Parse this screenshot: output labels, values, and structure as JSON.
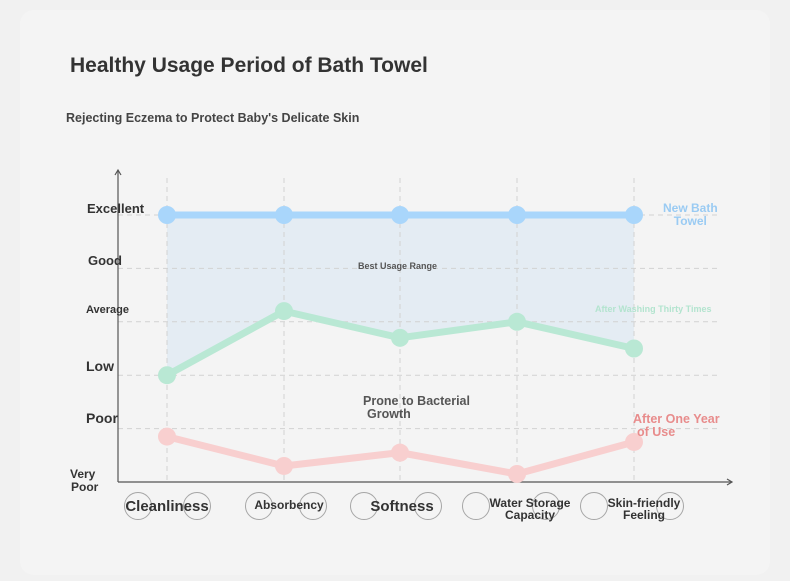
{
  "title": "Healthy Usage Period of Bath Towel",
  "subtitle": "Rejecting Eczema to Protect Baby's Delicate Skin",
  "colors": {
    "new_towel": "#a9d6fb",
    "after_washing": "#b9e8d4",
    "after_year": "#f8cfcf",
    "grid": "#d2d2d2",
    "axis": "#555555"
  },
  "chart_data": {
    "type": "line",
    "categories": [
      "Cleanliness",
      "Absorbency",
      "Softness",
      "Water Storage Capacity",
      "Skin-friendly Feeling"
    ],
    "category_lines": [
      [
        "Cleanliness"
      ],
      [
        "Absorbency"
      ],
      [
        "Softness"
      ],
      [
        "Water Storage",
        "Capacity"
      ],
      [
        "Skin-friendly",
        "Feeling"
      ]
    ],
    "y_levels": [
      "Very Poor",
      "Poor",
      "Low",
      "Average",
      "Good",
      "Excellent"
    ],
    "ylim": [
      0,
      5
    ],
    "series": [
      {
        "name": "New Bath Towel",
        "name_lines": [
          "New Bath",
          "Towel"
        ],
        "color": "#a9d6fb",
        "label_color": "#9acbf3",
        "values": [
          5,
          5,
          5,
          5,
          5
        ]
      },
      {
        "name": "After Washing Thirty Times",
        "name_lines": [
          "After Washing Thirty Times"
        ],
        "color": "#b9e8d4",
        "label_color": "#b3e4cf",
        "values": [
          2.0,
          3.2,
          2.7,
          3.0,
          2.5
        ]
      },
      {
        "name": "After One Year of Use",
        "name_lines": [
          "After One Year",
          "of Use"
        ],
        "color": "#f8cfcf",
        "label_color": "#e88c8c",
        "values": [
          0.85,
          0.3,
          0.55,
          0.15,
          0.75
        ]
      }
    ],
    "annotations": {
      "best_range": "Best Usage Range",
      "bacterial": [
        "Prone to Bacterial",
        "Growth"
      ]
    },
    "grid": true
  }
}
